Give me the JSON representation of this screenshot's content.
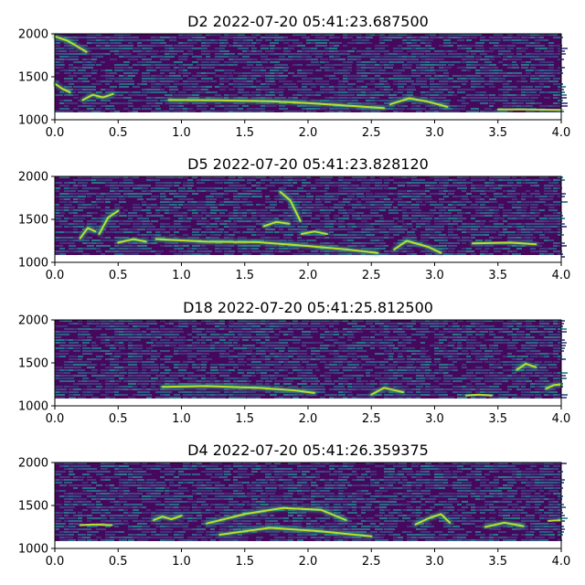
{
  "chart_data": [
    {
      "type": "heatmap",
      "title": "D2 2022-07-20 05:41:23.687500",
      "xlabel": "",
      "ylabel": "",
      "xlim": [
        0,
        4.0
      ],
      "ylim": [
        1000,
        2000
      ],
      "xticks": [
        "0.0",
        "0.5",
        "1.0",
        "1.5",
        "2.0",
        "2.5",
        "3.0",
        "3.5",
        "4.0"
      ],
      "yticks": [
        "1000",
        "1500",
        "2000"
      ],
      "colormap": "viridis",
      "features": [
        {
          "x": [
            0.0,
            0.1,
            0.17,
            0.25
          ],
          "y": [
            1970,
            1920,
            1860,
            1790
          ]
        },
        {
          "x": [
            0.0,
            0.06,
            0.12
          ],
          "y": [
            1420,
            1360,
            1320
          ]
        },
        {
          "x": [
            0.22,
            0.3,
            0.38,
            0.46
          ],
          "y": [
            1230,
            1290,
            1260,
            1300
          ]
        },
        {
          "x": [
            0.9,
            1.3,
            1.7,
            2.0,
            2.3,
            2.6
          ],
          "y": [
            1230,
            1225,
            1215,
            1195,
            1165,
            1135
          ]
        },
        {
          "x": [
            2.65,
            2.8,
            2.95,
            3.1
          ],
          "y": [
            1180,
            1250,
            1210,
            1150
          ]
        },
        {
          "x": [
            3.5,
            3.7,
            4.0
          ],
          "y": [
            1120,
            1120,
            1115
          ]
        }
      ]
    },
    {
      "type": "heatmap",
      "title": "D5 2022-07-20 05:41:23.828120",
      "xlabel": "",
      "ylabel": "",
      "xlim": [
        0,
        4.0
      ],
      "ylim": [
        1000,
        2000
      ],
      "xticks": [
        "0.0",
        "0.5",
        "1.0",
        "1.5",
        "2.0",
        "2.5",
        "3.0",
        "3.5",
        "4.0"
      ],
      "yticks": [
        "1000",
        "1500",
        "2000"
      ],
      "colormap": "viridis",
      "features": [
        {
          "x": [
            0.2,
            0.26,
            0.32
          ],
          "y": [
            1280,
            1400,
            1360
          ]
        },
        {
          "x": [
            0.35,
            0.42,
            0.5
          ],
          "y": [
            1330,
            1520,
            1600
          ]
        },
        {
          "x": [
            0.5,
            0.62,
            0.72
          ],
          "y": [
            1230,
            1270,
            1240
          ]
        },
        {
          "x": [
            0.8,
            1.2,
            1.6,
            2.0,
            2.3,
            2.55
          ],
          "y": [
            1270,
            1240,
            1235,
            1190,
            1150,
            1110
          ]
        },
        {
          "x": [
            1.65,
            1.75,
            1.85
          ],
          "y": [
            1420,
            1470,
            1450
          ]
        },
        {
          "x": [
            1.78,
            1.86,
            1.94
          ],
          "y": [
            1820,
            1720,
            1480
          ]
        },
        {
          "x": [
            1.95,
            2.05,
            2.15
          ],
          "y": [
            1330,
            1360,
            1330
          ]
        },
        {
          "x": [
            2.68,
            2.78,
            2.95,
            3.05
          ],
          "y": [
            1150,
            1250,
            1180,
            1110
          ]
        },
        {
          "x": [
            3.3,
            3.6,
            3.8
          ],
          "y": [
            1220,
            1230,
            1210
          ]
        }
      ]
    },
    {
      "type": "heatmap",
      "title": "D18 2022-07-20 05:41:25.812500",
      "xlabel": "",
      "ylabel": "",
      "xlim": [
        0,
        4.0
      ],
      "ylim": [
        1000,
        2000
      ],
      "xticks": [
        "0.0",
        "0.5",
        "1.0",
        "1.5",
        "2.0",
        "2.5",
        "3.0",
        "3.5",
        "4.0"
      ],
      "yticks": [
        "1000",
        "1500",
        "2000"
      ],
      "colormap": "viridis",
      "features": [
        {
          "x": [
            0.85,
            1.2,
            1.6,
            1.9,
            2.05
          ],
          "y": [
            1220,
            1230,
            1210,
            1180,
            1150
          ]
        },
        {
          "x": [
            2.5,
            2.6,
            2.75
          ],
          "y": [
            1130,
            1210,
            1160
          ]
        },
        {
          "x": [
            3.25,
            3.35,
            3.45
          ],
          "y": [
            1120,
            1130,
            1120
          ]
        },
        {
          "x": [
            3.65,
            3.72,
            3.8
          ],
          "y": [
            1420,
            1490,
            1450
          ]
        },
        {
          "x": [
            3.88,
            3.94,
            4.0
          ],
          "y": [
            1200,
            1240,
            1250
          ]
        }
      ]
    },
    {
      "type": "heatmap",
      "title": "D4 2022-07-20 05:41:26.359375",
      "xlabel": "",
      "ylabel": "",
      "xlim": [
        0,
        4.0
      ],
      "ylim": [
        1000,
        2000
      ],
      "xticks": [
        "0.0",
        "0.5",
        "1.0",
        "1.5",
        "2.0",
        "2.5",
        "3.0",
        "3.5",
        "4.0"
      ],
      "yticks": [
        "1000",
        "1500",
        "2000"
      ],
      "colormap": "viridis",
      "features": [
        {
          "x": [
            0.2,
            0.3,
            0.45
          ],
          "y": [
            1270,
            1280,
            1270
          ]
        },
        {
          "x": [
            0.78,
            0.85,
            0.92,
            1.0
          ],
          "y": [
            1330,
            1370,
            1340,
            1380
          ]
        },
        {
          "x": [
            1.2,
            1.5,
            1.8,
            2.1,
            2.3
          ],
          "y": [
            1290,
            1400,
            1470,
            1450,
            1330
          ]
        },
        {
          "x": [
            1.3,
            1.7,
            2.1,
            2.5
          ],
          "y": [
            1160,
            1240,
            1200,
            1140
          ]
        },
        {
          "x": [
            2.85,
            2.95,
            3.05,
            3.12
          ],
          "y": [
            1280,
            1350,
            1400,
            1300
          ]
        },
        {
          "x": [
            3.4,
            3.55,
            3.7
          ],
          "y": [
            1250,
            1300,
            1260
          ]
        },
        {
          "x": [
            3.9,
            4.0
          ],
          "y": [
            1320,
            1330
          ]
        }
      ]
    }
  ]
}
